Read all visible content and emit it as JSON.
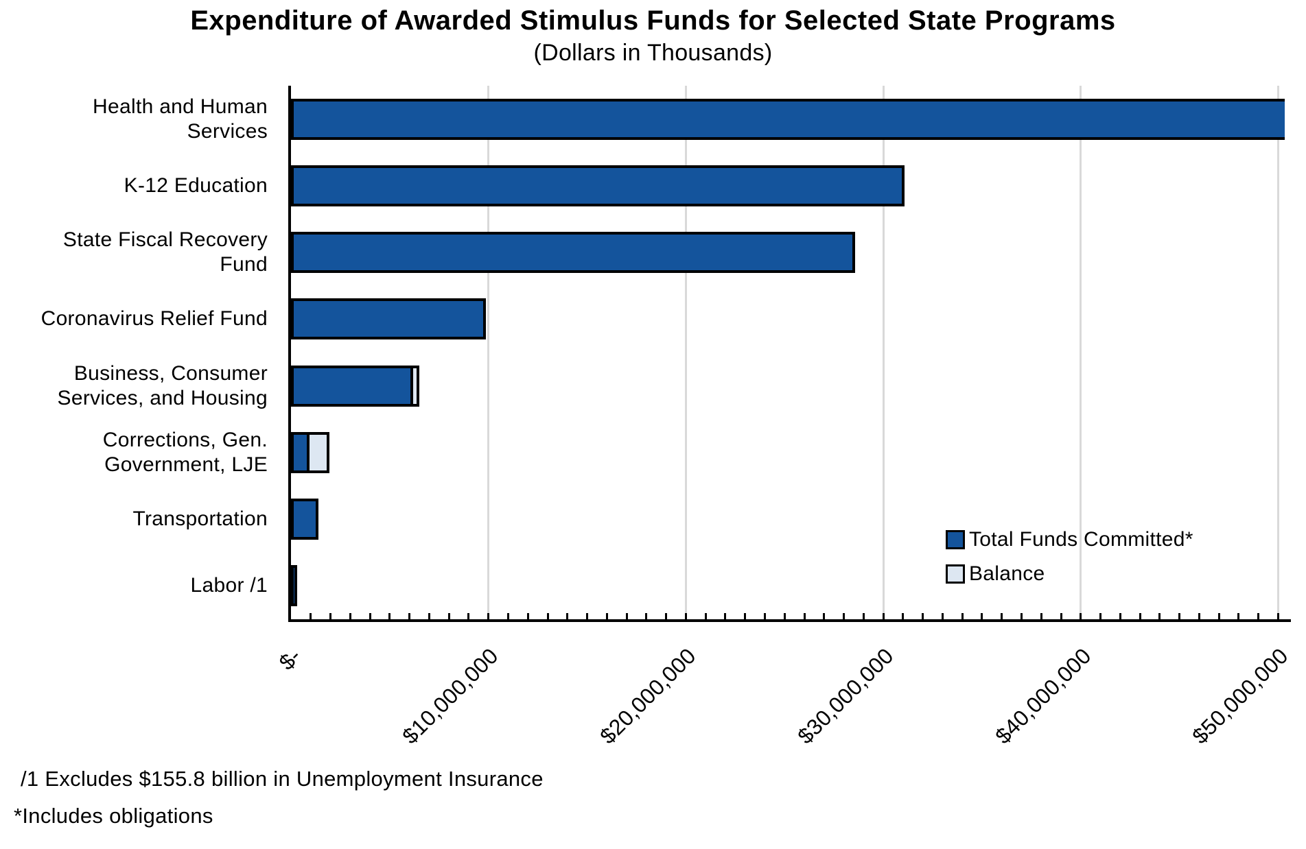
{
  "page": {
    "background": "#FFFFFF"
  },
  "chart_data": {
    "type": "bar",
    "orientation": "horizontal",
    "stacked": true,
    "title": "Expenditure of Awarded Stimulus Funds for Selected State Programs",
    "subtitle": "(Dollars in Thousands)",
    "units": "dollars in thousands",
    "categories": [
      "Health and Human Services",
      "K-12 Education",
      "State Fiscal Recovery Fund",
      "Coronavirus Relief Fund",
      "Business, Consumer Services, and Housing",
      "Corrections, Gen. Government, LJE",
      "Transportation",
      "Labor /1"
    ],
    "category_label_lines": [
      [
        "Health and Human",
        "Services"
      ],
      [
        "K-12 Education"
      ],
      [
        "State Fiscal Recovery",
        "Fund"
      ],
      [
        "Coronavirus Relief Fund"
      ],
      [
        "Business, Consumer",
        "Services, and Housing"
      ],
      [
        "Corrections, Gen.",
        "Government, LJE"
      ],
      [
        "Transportation"
      ],
      [
        "Labor /1"
      ]
    ],
    "series": [
      {
        "name": "Total Funds Committed*",
        "color": "#14549C",
        "values": [
          50200000,
          30800000,
          28300000,
          9600000,
          5900000,
          660000,
          1100000,
          20000
        ]
      },
      {
        "name": "Balance",
        "color": "#DDE7F2",
        "values": [
          0,
          0,
          0,
          0,
          170000,
          870000,
          0,
          0
        ]
      }
    ],
    "x_axis": {
      "tick_labels": [
        "$-",
        "$10,000,000",
        "$20,000,000",
        "$30,000,000",
        "$40,000,000",
        "$50,000,000"
      ],
      "tick_values": [
        0,
        10000000,
        20000000,
        30000000,
        40000000,
        50000000
      ],
      "minor_tick_step": 1000000,
      "min": 0,
      "max": 50600000
    },
    "grid": "major-vertical",
    "gridline_color": "#D9D9D9",
    "bar_border_color": "#000000",
    "legend_position": "inside-bottom-right"
  },
  "footnotes": {
    "line1": "/1 Excludes $155.8 billion in Unemployment Insurance",
    "line2": "*Includes obligations"
  }
}
